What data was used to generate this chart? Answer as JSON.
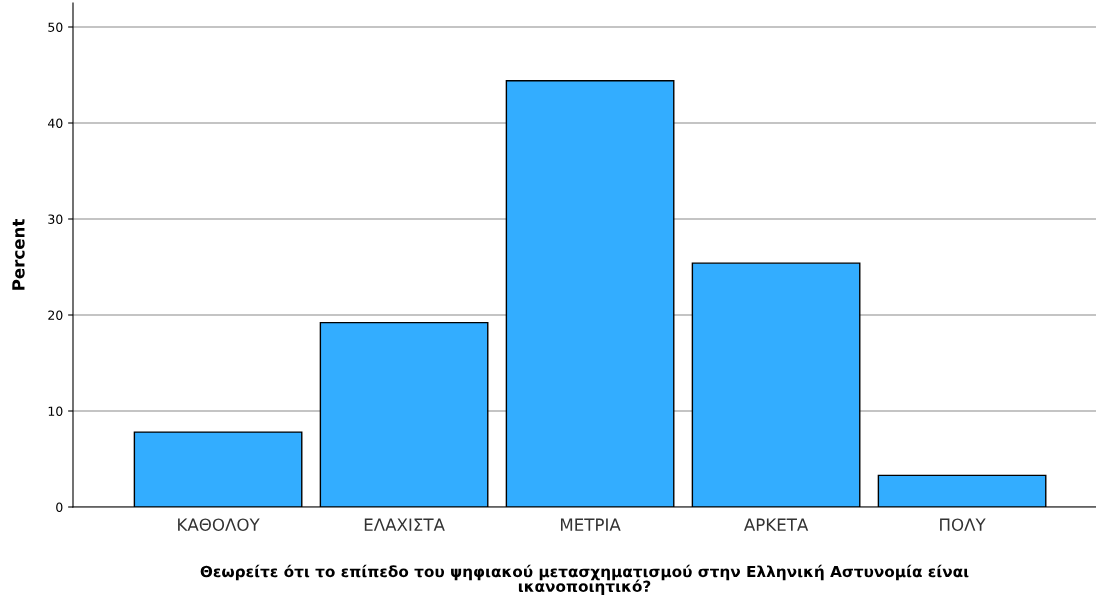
{
  "chart_data": {
    "type": "bar",
    "categories": [
      "ΚΑΘΟΛΟΥ",
      "ΕΛΑΧΙΣΤΑ",
      "ΜΕΤΡΙΑ",
      "ΑΡΚΕΤΑ",
      "ΠΟΛΥ"
    ],
    "values": [
      7.8,
      19.2,
      44.4,
      25.4,
      3.3
    ],
    "color": "#33adff",
    "xlabel": "Θεωρείτε ότι το επίπεδο του ψηφιακού μετασχηματισμού στην Ελληνική Αστυνομία είναι\nικανοποιητικό?",
    "ylabel": "Percent",
    "ylim": [
      0,
      52.5
    ],
    "yticks": [
      0,
      10,
      20,
      30,
      40,
      50
    ],
    "grid": "y"
  }
}
